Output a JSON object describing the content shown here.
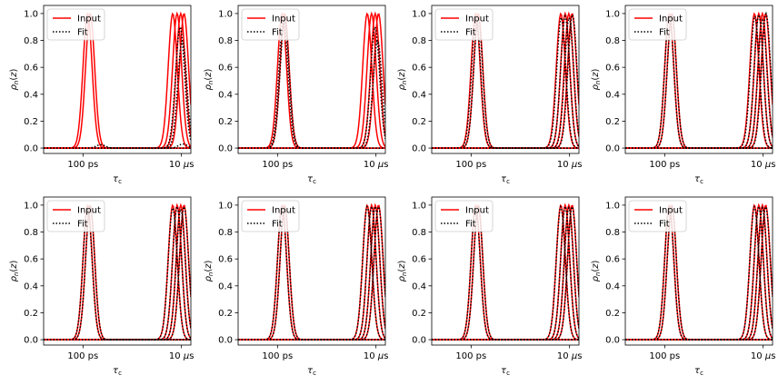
{
  "colors": {
    "input": "#ff0000",
    "fit": "#000000",
    "axes": "#000000",
    "background": "#ffffff"
  },
  "chart_data": {
    "type": "line",
    "layout": "2x4 grid of subplots",
    "xlabel": "τ_c",
    "ylabel": "ρ_n(z)",
    "x_scale": "log",
    "x_unit": "s",
    "xlim": [
      1e-12,
      3e-05
    ],
    "xticks": [
      {
        "value": 1e-10,
        "label": "100 ps"
      },
      {
        "value": 1e-05,
        "label": "10 μs"
      }
    ],
    "ylim": [
      -0.04,
      1.06
    ],
    "yticks": [
      "0.0",
      "0.2",
      "0.4",
      "0.6",
      "0.8",
      "1.0"
    ],
    "legend": {
      "placement": "top-left",
      "entries": [
        {
          "label": "Input",
          "style": "solid red"
        },
        {
          "label": "Fit",
          "style": "dotted black"
        }
      ]
    },
    "input_peaks_tau_c": [
      1.7e-10,
      2.3e-10,
      3.6e-06,
      6e-06,
      9.2e-06,
      1.35e-05
    ],
    "panels": [
      {
        "fit_peaks": [
          {
            "tau_c": 8e-10,
            "height": 0.025
          },
          {
            "tau_c": 8.5e-06,
            "height": 0.9
          },
          {
            "tau_c": 1.1e-05,
            "height": 0.8
          },
          {
            "tau_c": 1.2e-05,
            "height": 0.03
          }
        ]
      },
      {
        "fit_peaks": [
          {
            "tau_c": 2e-10,
            "height": 0.96
          },
          {
            "tau_c": 2.3e-10,
            "height": 0.95
          },
          {
            "tau_c": 9e-06,
            "height": 0.9
          },
          {
            "tau_c": 1.2e-05,
            "height": 0.8
          }
        ]
      },
      {
        "fit_peaks": [
          {
            "tau_c": 1.8e-10,
            "height": 0.97
          },
          {
            "tau_c": 2.3e-10,
            "height": 0.96
          },
          {
            "tau_c": 3.8e-06,
            "height": 0.97
          },
          {
            "tau_c": 6e-06,
            "height": 0.98
          },
          {
            "tau_c": 9.5e-06,
            "height": 0.97
          },
          {
            "tau_c": 1.4e-05,
            "height": 0.99
          }
        ]
      },
      {
        "fit_peaks": [
          {
            "tau_c": 1.7e-10,
            "height": 0.99
          },
          {
            "tau_c": 2.3e-10,
            "height": 0.99
          },
          {
            "tau_c": 3.8e-06,
            "height": 0.98
          },
          {
            "tau_c": 6e-06,
            "height": 0.99
          },
          {
            "tau_c": 9.2e-06,
            "height": 0.95
          },
          {
            "tau_c": 1.4e-05,
            "height": 1.0
          }
        ]
      },
      {
        "fit_peaks": [
          {
            "tau_c": 1.7e-10,
            "height": 0.98
          },
          {
            "tau_c": 2.3e-10,
            "height": 0.99
          },
          {
            "tau_c": 3.6e-06,
            "height": 0.98
          },
          {
            "tau_c": 6e-06,
            "height": 0.99
          },
          {
            "tau_c": 9.2e-06,
            "height": 0.97
          },
          {
            "tau_c": 1.35e-05,
            "height": 0.99
          }
        ]
      },
      {
        "fit_peaks": [
          {
            "tau_c": 1.7e-10,
            "height": 0.99
          },
          {
            "tau_c": 2.3e-10,
            "height": 0.99
          },
          {
            "tau_c": 3.6e-06,
            "height": 0.99
          },
          {
            "tau_c": 6e-06,
            "height": 0.99
          },
          {
            "tau_c": 9.2e-06,
            "height": 0.99
          },
          {
            "tau_c": 1.35e-05,
            "height": 0.99
          }
        ]
      },
      {
        "fit_peaks": [
          {
            "tau_c": 1.7e-10,
            "height": 0.99
          },
          {
            "tau_c": 2.3e-10,
            "height": 0.99
          },
          {
            "tau_c": 3.6e-06,
            "height": 0.99
          },
          {
            "tau_c": 6e-06,
            "height": 0.99
          },
          {
            "tau_c": 9.2e-06,
            "height": 0.98
          },
          {
            "tau_c": 1.35e-05,
            "height": 0.99
          }
        ]
      },
      {
        "fit_peaks": [
          {
            "tau_c": 1.7e-10,
            "height": 0.99
          },
          {
            "tau_c": 2.3e-10,
            "height": 0.99
          },
          {
            "tau_c": 3.6e-06,
            "height": 0.99
          },
          {
            "tau_c": 6e-06,
            "height": 0.99
          },
          {
            "tau_c": 9.2e-06,
            "height": 0.98
          },
          {
            "tau_c": 1.35e-05,
            "height": 0.99
          }
        ]
      }
    ]
  }
}
